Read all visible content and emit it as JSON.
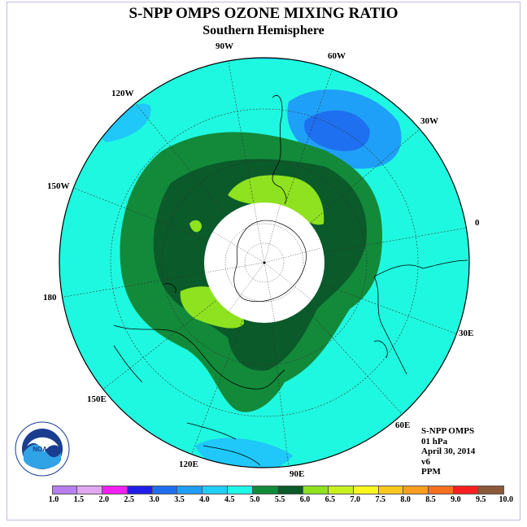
{
  "title": "S-NPP OMPS OZONE MIXING RATIO",
  "subtitle": "Southern Hemisphere",
  "longitude_labels": {
    "w90": "90W",
    "w60": "60W",
    "w30": "30W",
    "w120": "120W",
    "w150": "150W",
    "e0": "0",
    "d180": "180",
    "e30": "30E",
    "e60": "60E",
    "e90": "90E",
    "e120": "120E",
    "e150": "150E"
  },
  "info": {
    "instrument": "S-NPP OMPS",
    "level": "01 hPa",
    "date": "April 30, 2014",
    "version": "v6",
    "units": "PPM"
  },
  "colorbar": {
    "ticks": [
      "1.0",
      "1.5",
      "2.0",
      "2.5",
      "3.0",
      "3.5",
      "4.0",
      "4.5",
      "5.0",
      "5.5",
      "6.0",
      "6.5",
      "7.0",
      "7.5",
      "8.0",
      "8.5",
      "9.0",
      "9.5",
      "10.0"
    ],
    "colors": [
      "#b77ff0",
      "#dfa8f0",
      "#f21ff0",
      "#1f1fe8",
      "#1f6ff0",
      "#1f9ff8",
      "#1fcff8",
      "#1ff8e8",
      "#128a3a",
      "#0a5a2a",
      "#8ee21f",
      "#c8f01f",
      "#f8f81f",
      "#f8c81f",
      "#f89f1f",
      "#f86f1f",
      "#f81f1f",
      "#8a5a3a"
    ]
  },
  "map_colors": {
    "c35": "#1f70f0",
    "c40": "#1fc8f8",
    "c45": "#1ff8e0",
    "c50": "#128a3a",
    "c55": "#0a5a2a",
    "c60": "#8ee21f"
  },
  "logo": {
    "text": "NOAA",
    "ring_text": "NATIONAL OCEANIC AND ATMOSPHERIC ADMINISTRATION · U.S. DEPARTMENT OF COMMERCE"
  }
}
